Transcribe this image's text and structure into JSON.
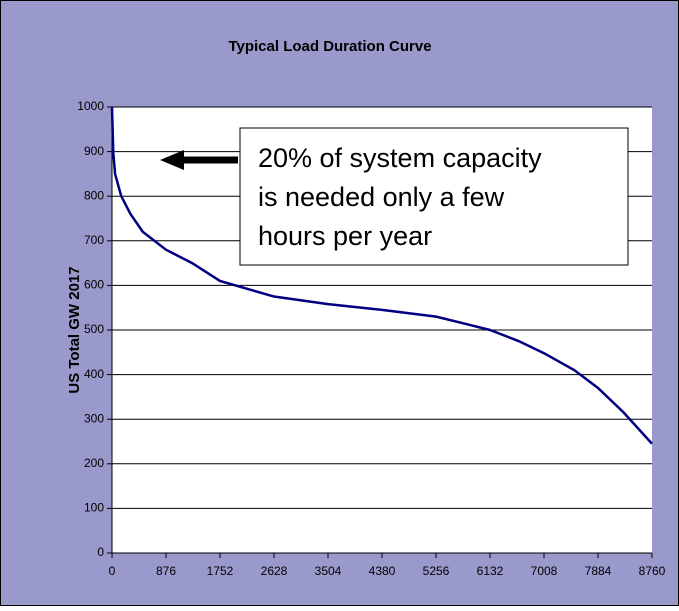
{
  "chart_data": {
    "type": "line",
    "title": "Typical Load Duration Curve",
    "y_label": "US Total GW 2017",
    "x": [
      0,
      20,
      50,
      150,
      300,
      500,
      876,
      1300,
      1752,
      2628,
      3504,
      4380,
      5256,
      5700,
      6132,
      6600,
      7008,
      7500,
      7884,
      8300,
      8760
    ],
    "values": [
      1000,
      900,
      850,
      800,
      760,
      720,
      680,
      650,
      610,
      575,
      558,
      545,
      530,
      515,
      500,
      475,
      448,
      410,
      370,
      315,
      245
    ],
    "color": "#000080",
    "xlim": [
      0,
      8760
    ],
    "xticks": [
      0,
      876,
      1752,
      2628,
      3504,
      4380,
      5256,
      6132,
      7008,
      7884,
      8760
    ],
    "ylim": [
      0,
      1000
    ],
    "yticks": [
      0,
      100,
      200,
      300,
      400,
      500,
      600,
      700,
      800,
      900,
      1000
    ],
    "grid": true,
    "annotation": [
      "20% of system capacity",
      "is needed only a few",
      "hours per year"
    ]
  }
}
